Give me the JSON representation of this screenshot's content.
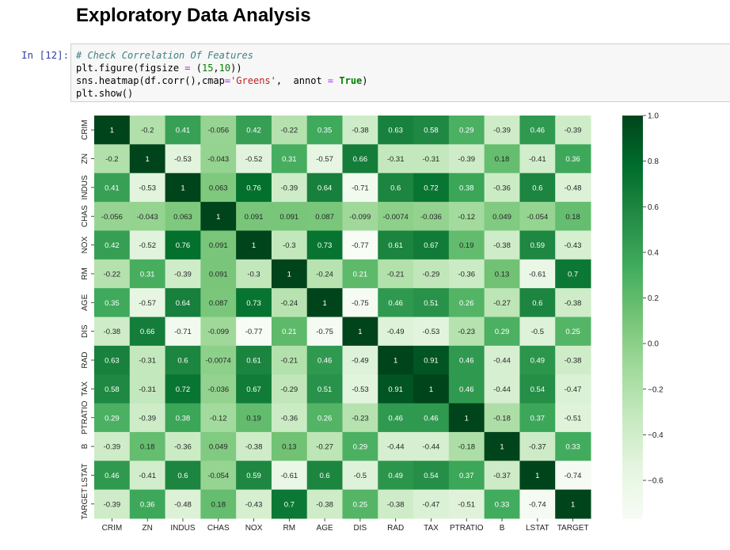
{
  "page_title": "Exploratory Data Analysis",
  "cell": {
    "prompt": "In [12]:",
    "code_lines": [
      "# Check Correlation Of Features",
      "plt.figure(figsize = (15,10))",
      "sns.heatmap(df.corr(),cmap='Greens',  annot = True)",
      "plt.show()"
    ]
  },
  "chart_data": {
    "type": "heatmap",
    "colormap": "Greens",
    "labels": [
      "CRIM",
      "ZN",
      "INDUS",
      "CHAS",
      "NOX",
      "RM",
      "AGE",
      "DIS",
      "RAD",
      "TAX",
      "PTRATIO",
      "B",
      "LSTAT",
      "TARGET"
    ],
    "values": [
      [
        1,
        -0.2,
        0.41,
        -0.056,
        0.42,
        -0.22,
        0.35,
        -0.38,
        0.63,
        0.58,
        0.29,
        -0.39,
        0.46,
        -0.39
      ],
      [
        -0.2,
        1,
        -0.53,
        -0.043,
        -0.52,
        0.31,
        -0.57,
        0.66,
        -0.31,
        -0.31,
        -0.39,
        0.18,
        -0.41,
        0.36
      ],
      [
        0.41,
        -0.53,
        1,
        0.063,
        0.76,
        -0.39,
        0.64,
        -0.71,
        0.6,
        0.72,
        0.38,
        -0.36,
        0.6,
        -0.48
      ],
      [
        -0.056,
        -0.043,
        0.063,
        1,
        0.091,
        0.091,
        0.087,
        -0.099,
        -0.0074,
        -0.036,
        -0.12,
        0.049,
        -0.054,
        0.18
      ],
      [
        0.42,
        -0.52,
        0.76,
        0.091,
        1,
        -0.3,
        0.73,
        -0.77,
        0.61,
        0.67,
        0.19,
        -0.38,
        0.59,
        -0.43
      ],
      [
        -0.22,
        0.31,
        -0.39,
        0.091,
        -0.3,
        1,
        -0.24,
        0.21,
        -0.21,
        -0.29,
        -0.36,
        0.13,
        -0.61,
        0.7
      ],
      [
        0.35,
        -0.57,
        0.64,
        0.087,
        0.73,
        -0.24,
        1,
        -0.75,
        0.46,
        0.51,
        0.26,
        -0.27,
        0.6,
        -0.38
      ],
      [
        -0.38,
        0.66,
        -0.71,
        -0.099,
        -0.77,
        0.21,
        -0.75,
        1,
        -0.49,
        -0.53,
        -0.23,
        0.29,
        -0.5,
        0.25
      ],
      [
        0.63,
        -0.31,
        0.6,
        -0.0074,
        0.61,
        -0.21,
        0.46,
        -0.49,
        1,
        0.91,
        0.46,
        -0.44,
        0.49,
        -0.38
      ],
      [
        0.58,
        -0.31,
        0.72,
        -0.036,
        0.67,
        -0.29,
        0.51,
        -0.53,
        0.91,
        1,
        0.46,
        -0.44,
        0.54,
        -0.47
      ],
      [
        0.29,
        -0.39,
        0.38,
        -0.12,
        0.19,
        -0.36,
        0.26,
        -0.23,
        0.46,
        0.46,
        1,
        -0.18,
        0.37,
        -0.51
      ],
      [
        -0.39,
        0.18,
        -0.36,
        0.049,
        -0.38,
        0.13,
        -0.27,
        0.29,
        -0.44,
        -0.44,
        -0.18,
        1,
        -0.37,
        0.33
      ],
      [
        0.46,
        -0.41,
        0.6,
        -0.054,
        0.59,
        -0.61,
        0.6,
        -0.5,
        0.49,
        0.54,
        0.37,
        -0.37,
        1,
        -0.74
      ],
      [
        -0.39,
        0.36,
        -0.48,
        0.18,
        -0.43,
        0.7,
        -0.38,
        0.25,
        -0.38,
        -0.47,
        -0.51,
        0.33,
        -0.74,
        1
      ]
    ],
    "vmin": -0.77,
    "vmax": 1,
    "colorbar_ticks": [
      "1.0",
      "0.8",
      "0.6",
      "0.4",
      "0.2",
      "0.0",
      "−0.2",
      "−0.4",
      "−0.6"
    ],
    "colorbar_tick_values": [
      1.0,
      0.8,
      0.6,
      0.4,
      0.2,
      0.0,
      -0.2,
      -0.4,
      -0.6
    ]
  }
}
